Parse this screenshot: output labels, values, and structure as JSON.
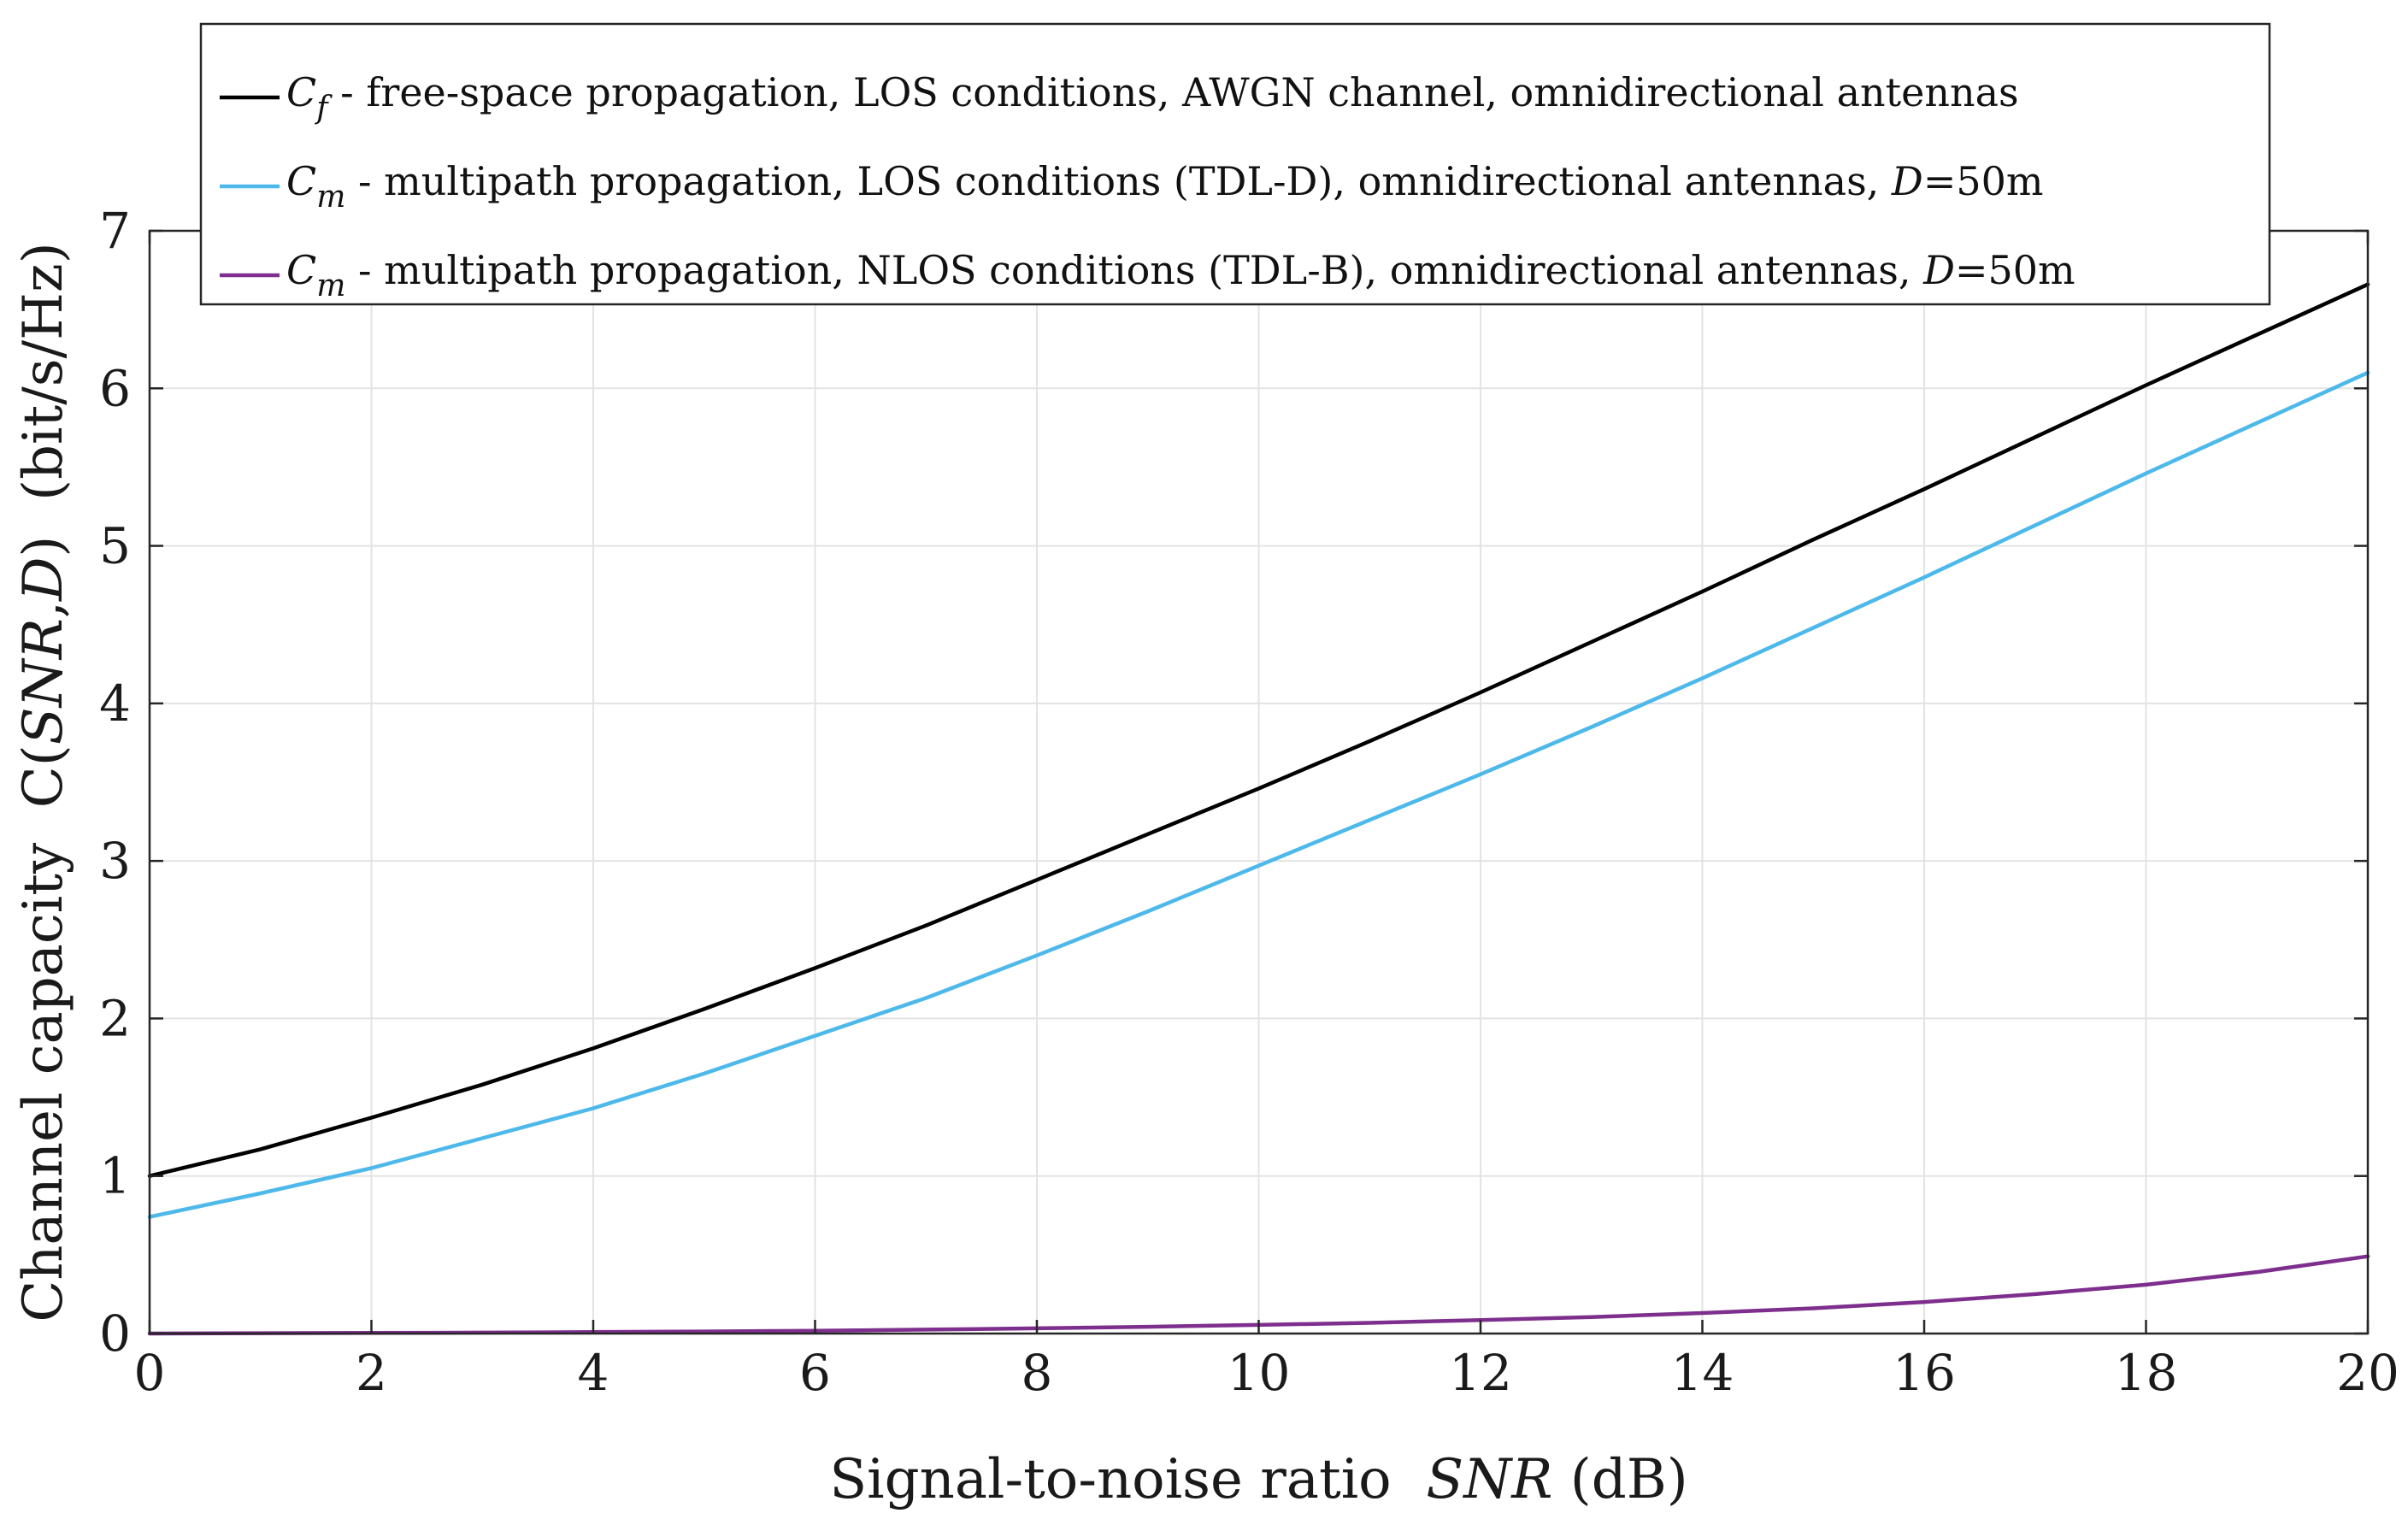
{
  "chart_data": {
    "type": "line",
    "xlabel": {
      "text": "Signal-to-noise ratio",
      "var": "SNR",
      "unit": "(dB)"
    },
    "ylabel": {
      "pre": "Channel capacity",
      "func": "C(",
      "var1": "SNR",
      "comma": ",",
      "var2": "D",
      "close": ")",
      "unit": "(bit/s/Hz)"
    },
    "xlim": [
      0,
      20
    ],
    "ylim": [
      0,
      7
    ],
    "xticks": [
      "0",
      "2",
      "4",
      "6",
      "8",
      "10",
      "12",
      "14",
      "16",
      "18",
      "20"
    ],
    "yticks": [
      "0",
      "1",
      "2",
      "3",
      "4",
      "5",
      "6",
      "7"
    ],
    "grid": true,
    "legend_position": "top",
    "x": [
      0,
      1,
      2,
      3,
      4,
      5,
      6,
      7,
      8,
      9,
      10,
      11,
      12,
      13,
      14,
      15,
      16,
      17,
      18,
      19,
      20
    ],
    "series": [
      {
        "color": "#000000",
        "legend": {
          "sym": "C",
          "sub": "f",
          "text": " - free-space propagation, LOS conditions, AWGN channel, omnidirectional antennas",
          "d": "",
          "tail": ""
        },
        "values": [
          1.0,
          1.17,
          1.37,
          1.58,
          1.81,
          2.06,
          2.32,
          2.59,
          2.88,
          3.17,
          3.46,
          3.76,
          4.07,
          4.39,
          4.71,
          5.04,
          5.36,
          5.69,
          6.02,
          6.34,
          6.66
        ]
      },
      {
        "color": "#4db8ea",
        "legend": {
          "sym": "C",
          "sub": "m",
          "text": " - multipath propagation, LOS conditions (TDL-D), omnidirectional antennas, ",
          "d": "D",
          "tail": "=50m"
        },
        "values": [
          0.74,
          0.89,
          1.05,
          1.24,
          1.43,
          1.65,
          1.89,
          2.13,
          2.4,
          2.68,
          2.97,
          3.26,
          3.55,
          3.85,
          4.16,
          4.48,
          4.8,
          5.13,
          5.46,
          5.78,
          6.1
        ]
      },
      {
        "color": "#7e2f8e",
        "legend": {
          "sym": "C",
          "sub": "m",
          "text": " - multipath propagation, NLOS conditions (TDL-B), omnidirectional antennas, ",
          "d": "D",
          "tail": "=50m"
        },
        "values": [
          0.0,
          0.002,
          0.004,
          0.006,
          0.009,
          0.013,
          0.018,
          0.025,
          0.033,
          0.043,
          0.055,
          0.068,
          0.085,
          0.105,
          0.13,
          0.16,
          0.2,
          0.25,
          0.31,
          0.39,
          0.49
        ]
      }
    ]
  }
}
